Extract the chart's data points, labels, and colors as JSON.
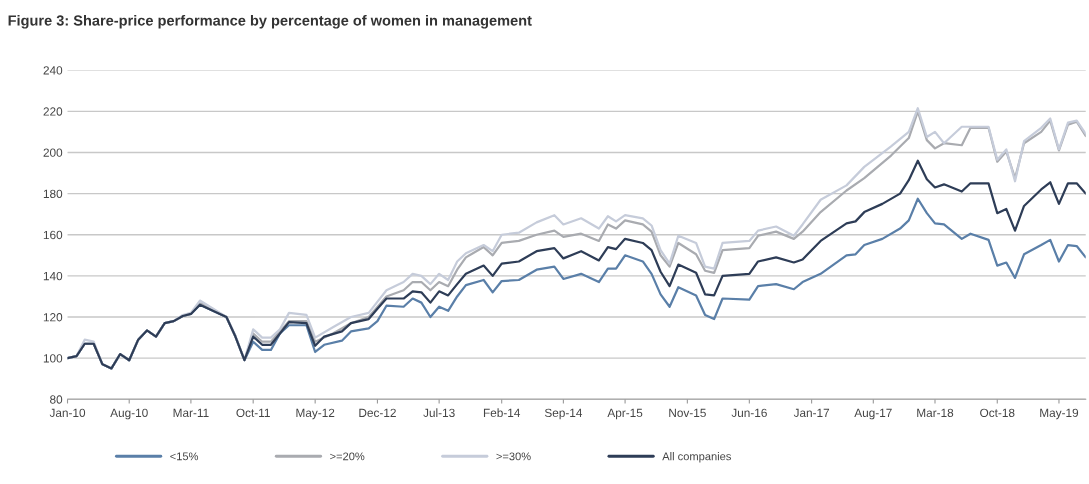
{
  "chart_data": {
    "type": "line",
    "title": "Figure 3: Share-price performance by percentage of women in management",
    "xlim": [
      "2010-01",
      "2019-08"
    ],
    "ylim": [
      80,
      240
    ],
    "yticks": [
      80,
      100,
      120,
      140,
      160,
      180,
      200,
      220,
      240
    ],
    "xticks": [
      {
        "value": "2010-01",
        "label": "Jan-10"
      },
      {
        "value": "2010-08",
        "label": "Aug-10"
      },
      {
        "value": "2011-03",
        "label": "Mar-11"
      },
      {
        "value": "2011-10",
        "label": "Oct-11"
      },
      {
        "value": "2012-05",
        "label": "May-12"
      },
      {
        "value": "2012-12",
        "label": "Dec-12"
      },
      {
        "value": "2013-07",
        "label": "Jul-13"
      },
      {
        "value": "2014-02",
        "label": "Feb-14"
      },
      {
        "value": "2014-09",
        "label": "Sep-14"
      },
      {
        "value": "2015-04",
        "label": "Apr-15"
      },
      {
        "value": "2015-11",
        "label": "Nov-15"
      },
      {
        "value": "2016-06",
        "label": "Jun-16"
      },
      {
        "value": "2017-01",
        "label": "Jan-17"
      },
      {
        "value": "2017-08",
        "label": "Aug-17"
      },
      {
        "value": "2018-03",
        "label": "Mar-18"
      },
      {
        "value": "2018-10",
        "label": "Oct-18"
      },
      {
        "value": "2019-05",
        "label": "May-19"
      }
    ],
    "grid": "y",
    "legend": "bottom",
    "marker": "none",
    "line_style": "solid",
    "series": [
      {
        "name": "<15%",
        "color": "#5a7fa8",
        "x": [
          "2010-01",
          "2010-02",
          "2010-03",
          "2010-04",
          "2010-05",
          "2010-06",
          "2010-07",
          "2010-08",
          "2010-09",
          "2010-10",
          "2010-11",
          "2010-12",
          "2011-01",
          "2011-02",
          "2011-03",
          "2011-04",
          "2011-07",
          "2011-08",
          "2011-09",
          "2011-10",
          "2011-11",
          "2011-12",
          "2012-01",
          "2012-02",
          "2012-04",
          "2012-05",
          "2012-06",
          "2012-08",
          "2012-09",
          "2012-11",
          "2012-12",
          "2013-01",
          "2013-03",
          "2013-04",
          "2013-05",
          "2013-06",
          "2013-07",
          "2013-08",
          "2013-09",
          "2013-10",
          "2013-12",
          "2014-01",
          "2014-02",
          "2014-04",
          "2014-06",
          "2014-08",
          "2014-09",
          "2014-11",
          "2015-01",
          "2015-02",
          "2015-03",
          "2015-04",
          "2015-06",
          "2015-07",
          "2015-08",
          "2015-09",
          "2015-10",
          "2015-12",
          "2016-01",
          "2016-02",
          "2016-03",
          "2016-06",
          "2016-07",
          "2016-09",
          "2016-11",
          "2016-12",
          "2017-02",
          "2017-05",
          "2017-06",
          "2017-07",
          "2017-09",
          "2017-11",
          "2017-12",
          "2018-01",
          "2018-02",
          "2018-03",
          "2018-04",
          "2018-06",
          "2018-07",
          "2018-09",
          "2018-10",
          "2018-11",
          "2018-12",
          "2019-01",
          "2019-03",
          "2019-04",
          "2019-05",
          "2019-06",
          "2019-07",
          "2019-08"
        ],
        "values": [
          100,
          101,
          107,
          107,
          97,
          95,
          102,
          99,
          109,
          113.5,
          110.5,
          117,
          118,
          120.5,
          121.5,
          126,
          120,
          110.5,
          99,
          108,
          104,
          104,
          112,
          116,
          116,
          103,
          106.5,
          108.5,
          113,
          114.5,
          118,
          125.5,
          125,
          129,
          127,
          120,
          125,
          123,
          130,
          135.5,
          138,
          132,
          137.5,
          138,
          143,
          144.5,
          138.5,
          141,
          137,
          143.5,
          143.5,
          150,
          147,
          141,
          131,
          125,
          134.5,
          130.5,
          121,
          119,
          129,
          128.5,
          135,
          136,
          133.5,
          137,
          141,
          150,
          150.5,
          155,
          158,
          163,
          167,
          177.5,
          170.5,
          165.5,
          165,
          158,
          160.5,
          157.5,
          145,
          146.5,
          139,
          150.5,
          155,
          157.5,
          147,
          155,
          154.5,
          149
        ]
      },
      {
        "name": ">=20%",
        "color": "#a9abb0",
        "x": [
          "2010-01",
          "2010-02",
          "2010-03",
          "2010-04",
          "2010-05",
          "2010-06",
          "2010-07",
          "2010-08",
          "2010-09",
          "2010-10",
          "2010-11",
          "2010-12",
          "2011-01",
          "2011-02",
          "2011-03",
          "2011-04",
          "2011-07",
          "2011-08",
          "2011-09",
          "2011-10",
          "2011-11",
          "2011-12",
          "2012-01",
          "2012-02",
          "2012-04",
          "2012-05",
          "2012-07",
          "2012-09",
          "2012-11",
          "2013-01",
          "2013-03",
          "2013-04",
          "2013-05",
          "2013-06",
          "2013-07",
          "2013-08",
          "2013-09",
          "2013-10",
          "2013-12",
          "2014-01",
          "2014-02",
          "2014-04",
          "2014-06",
          "2014-08",
          "2014-09",
          "2014-11",
          "2015-01",
          "2015-02",
          "2015-03",
          "2015-04",
          "2015-06",
          "2015-07",
          "2015-08",
          "2015-09",
          "2015-10",
          "2015-12",
          "2016-01",
          "2016-02",
          "2016-03",
          "2016-06",
          "2016-07",
          "2016-09",
          "2016-11",
          "2016-12",
          "2017-02",
          "2017-05",
          "2017-07",
          "2017-10",
          "2017-12",
          "2018-01",
          "2018-02",
          "2018-03",
          "2018-04",
          "2018-06",
          "2018-07",
          "2018-09",
          "2018-10",
          "2018-11",
          "2018-12",
          "2019-01",
          "2019-03",
          "2019-04",
          "2019-05",
          "2019-06",
          "2019-07",
          "2019-08"
        ],
        "values": [
          100,
          101,
          107,
          107,
          97,
          95,
          102,
          99,
          109,
          113.5,
          110.5,
          117,
          118,
          120.5,
          121.5,
          127,
          120,
          110.5,
          99,
          112,
          108,
          108,
          113,
          118,
          118,
          108,
          112,
          117,
          120,
          130,
          133,
          137,
          137,
          133,
          137,
          135,
          143,
          149,
          154,
          150,
          156,
          157,
          160,
          162,
          159,
          160.5,
          157,
          165,
          163,
          167,
          165,
          161.5,
          150,
          144.5,
          156,
          150.5,
          142.5,
          141.5,
          152.5,
          153.5,
          159.5,
          161.5,
          158,
          161.5,
          171,
          181.5,
          187.5,
          198.5,
          207,
          220,
          206,
          202,
          204.5,
          203.5,
          212,
          212,
          195.5,
          200.5,
          187.5,
          204.5,
          210,
          215.5,
          201,
          213.5,
          215,
          208
        ]
      },
      {
        "name": ">=30%",
        "color": "#c6ccda",
        "x": [
          "2010-01",
          "2010-02",
          "2010-03",
          "2010-04",
          "2010-05",
          "2010-06",
          "2010-07",
          "2010-08",
          "2010-09",
          "2010-10",
          "2010-11",
          "2010-12",
          "2011-01",
          "2011-02",
          "2011-03",
          "2011-04",
          "2011-07",
          "2011-08",
          "2011-09",
          "2011-10",
          "2011-11",
          "2011-12",
          "2012-01",
          "2012-02",
          "2012-04",
          "2012-05",
          "2012-07",
          "2012-09",
          "2012-11",
          "2013-01",
          "2013-03",
          "2013-04",
          "2013-05",
          "2013-06",
          "2013-07",
          "2013-08",
          "2013-09",
          "2013-10",
          "2013-12",
          "2014-01",
          "2014-02",
          "2014-04",
          "2014-06",
          "2014-08",
          "2014-09",
          "2014-11",
          "2015-01",
          "2015-02",
          "2015-03",
          "2015-04",
          "2015-06",
          "2015-07",
          "2015-08",
          "2015-09",
          "2015-10",
          "2015-12",
          "2016-01",
          "2016-02",
          "2016-03",
          "2016-06",
          "2016-07",
          "2016-09",
          "2016-11",
          "2016-12",
          "2017-02",
          "2017-05",
          "2017-07",
          "2017-10",
          "2017-12",
          "2018-01",
          "2018-02",
          "2018-03",
          "2018-04",
          "2018-06",
          "2018-07",
          "2018-09",
          "2018-10",
          "2018-11",
          "2018-12",
          "2019-01",
          "2019-03",
          "2019-04",
          "2019-05",
          "2019-06",
          "2019-07",
          "2019-08"
        ],
        "values": [
          100,
          101,
          109,
          108,
          97,
          95,
          102,
          99,
          109,
          113.5,
          110.5,
          117,
          118,
          121,
          122,
          128,
          120,
          111,
          99,
          114,
          110,
          110,
          114,
          122,
          121,
          110,
          115,
          120,
          122,
          133,
          137,
          141,
          140,
          136,
          141,
          138,
          147,
          151,
          155,
          152,
          160,
          161,
          166,
          169.5,
          165,
          168,
          163,
          169,
          166.5,
          169.5,
          168,
          164.5,
          152.5,
          146,
          159.5,
          156,
          144.5,
          143.5,
          156,
          157,
          162,
          164,
          159.5,
          165,
          177,
          184,
          193,
          203,
          210,
          221.5,
          207.5,
          210,
          204.5,
          212.5,
          212.5,
          212.5,
          196.5,
          201.5,
          186,
          205.5,
          212,
          216.5,
          201.5,
          214.5,
          215.5,
          209
        ]
      },
      {
        "name": "All companies",
        "color": "#2e3d57",
        "x": [
          "2010-01",
          "2010-02",
          "2010-03",
          "2010-04",
          "2010-05",
          "2010-06",
          "2010-07",
          "2010-08",
          "2010-09",
          "2010-10",
          "2010-11",
          "2010-12",
          "2011-01",
          "2011-02",
          "2011-03",
          "2011-04",
          "2011-07",
          "2011-08",
          "2011-09",
          "2011-10",
          "2011-11",
          "2011-12",
          "2012-01",
          "2012-02",
          "2012-04",
          "2012-05",
          "2012-06",
          "2012-08",
          "2012-09",
          "2012-11",
          "2012-12",
          "2013-01",
          "2013-03",
          "2013-04",
          "2013-05",
          "2013-06",
          "2013-07",
          "2013-08",
          "2013-09",
          "2013-10",
          "2013-12",
          "2014-01",
          "2014-02",
          "2014-04",
          "2014-06",
          "2014-08",
          "2014-09",
          "2014-11",
          "2015-01",
          "2015-02",
          "2015-03",
          "2015-04",
          "2015-06",
          "2015-07",
          "2015-08",
          "2015-09",
          "2015-10",
          "2015-12",
          "2016-01",
          "2016-02",
          "2016-03",
          "2016-06",
          "2016-07",
          "2016-09",
          "2016-11",
          "2016-12",
          "2017-02",
          "2017-05",
          "2017-06",
          "2017-07",
          "2017-09",
          "2017-11",
          "2017-12",
          "2018-01",
          "2018-02",
          "2018-03",
          "2018-04",
          "2018-06",
          "2018-07",
          "2018-09",
          "2018-10",
          "2018-11",
          "2018-12",
          "2019-01",
          "2019-03",
          "2019-04",
          "2019-05",
          "2019-06",
          "2019-07",
          "2019-08"
        ],
        "values": [
          100,
          101,
          107,
          107,
          97,
          95,
          102,
          99,
          109,
          113.5,
          110.5,
          117,
          118,
          120.5,
          121.5,
          126,
          120,
          110.5,
          99,
          110.5,
          106.5,
          106.5,
          112,
          117.5,
          117,
          106,
          110.5,
          113,
          117,
          119,
          124,
          129,
          129,
          132.5,
          132,
          127,
          132.5,
          130.5,
          136,
          141,
          145,
          140,
          146,
          147,
          152,
          153.5,
          148.5,
          152,
          147.5,
          154,
          153,
          158,
          156,
          152.5,
          142,
          135,
          145.5,
          141.5,
          131,
          130.5,
          140,
          141,
          147,
          149,
          146.5,
          148,
          157,
          165.5,
          166.5,
          171,
          175,
          180,
          186.5,
          196,
          187,
          183,
          184.5,
          181,
          185,
          185,
          170.5,
          172.5,
          162,
          174,
          182,
          185.5,
          175,
          185,
          185,
          180
        ]
      }
    ]
  }
}
